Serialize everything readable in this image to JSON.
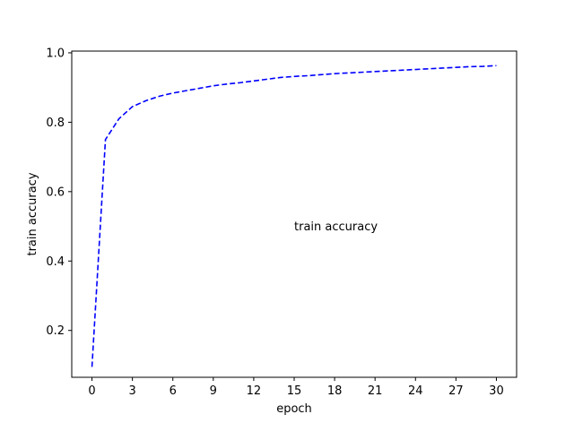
{
  "chart_data": {
    "type": "line",
    "xlabel": "epoch",
    "ylabel": "train accuracy",
    "xlim": [
      -1.5,
      31.5
    ],
    "ylim": [
      0.065,
      1.005
    ],
    "xticks": [
      0,
      3,
      6,
      9,
      12,
      15,
      18,
      21,
      24,
      27,
      30
    ],
    "yticks": [
      0.2,
      0.4,
      0.6,
      0.8,
      1.0
    ],
    "ytick_labels": [
      "0.2",
      "0.4",
      "0.6",
      "0.8",
      "1.0"
    ],
    "grid": false,
    "annotation": {
      "text": "train accuracy",
      "x": 15,
      "y": 0.5
    },
    "series": [
      {
        "color": "#0000ff",
        "linestyle": "dashed",
        "x": [
          0,
          1,
          2,
          3,
          4,
          5,
          6,
          7,
          8,
          9,
          10,
          11,
          12,
          13,
          14,
          15,
          16,
          17,
          18,
          19,
          20,
          21,
          22,
          23,
          24,
          25,
          26,
          27,
          28,
          29,
          30
        ],
        "values": [
          0.095,
          0.75,
          0.81,
          0.845,
          0.862,
          0.875,
          0.884,
          0.891,
          0.898,
          0.905,
          0.91,
          0.914,
          0.919,
          0.924,
          0.929,
          0.932,
          0.934,
          0.937,
          0.94,
          0.942,
          0.944,
          0.946,
          0.948,
          0.95,
          0.952,
          0.954,
          0.956,
          0.958,
          0.96,
          0.961,
          0.963
        ]
      }
    ]
  }
}
